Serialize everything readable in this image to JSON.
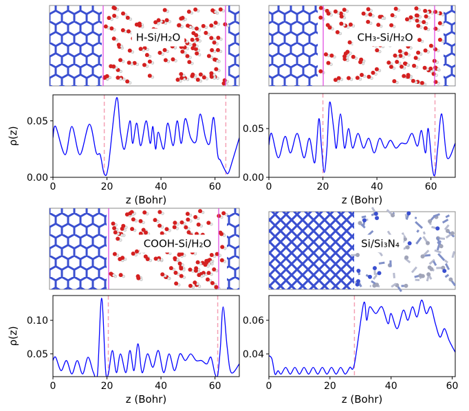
{
  "chart_data": [
    {
      "type": "line",
      "label": "H-Si/H₂O",
      "xlabel": "z (Bohr)",
      "ylabel": "ρ(z)",
      "color": "#0000ff",
      "vline_color": "#f4a0b4",
      "x": [
        0,
        1,
        4.5,
        7,
        10,
        13.5,
        16,
        17.5,
        19,
        20.5,
        23.5,
        25,
        26.5,
        28.5,
        29.5,
        31,
        32.5,
        34.5,
        36,
        37,
        38,
        39,
        41,
        42.5,
        44.5,
        46,
        47.5,
        49,
        51,
        53,
        54.5,
        56.5,
        58,
        59.5,
        61,
        62,
        64,
        65,
        66.5,
        69
      ],
      "values": [
        0.035,
        0.045,
        0.02,
        0.045,
        0.02,
        0.047,
        0.022,
        0.02,
        0.003,
        0.01,
        0.07,
        0.04,
        0.025,
        0.05,
        0.03,
        0.048,
        0.028,
        0.05,
        0.03,
        0.045,
        0.025,
        0.04,
        0.025,
        0.048,
        0.028,
        0.05,
        0.03,
        0.052,
        0.035,
        0.032,
        0.056,
        0.035,
        0.03,
        0.053,
        0.02,
        0.015,
        0.005,
        0.004,
        0.015,
        0.035
      ],
      "xlim": [
        0,
        69
      ],
      "ylim": [
        0,
        0.073
      ],
      "xticks": [
        0,
        20,
        40,
        60
      ],
      "yticks": [
        {
          "value": 0,
          "label": "0.00"
        },
        {
          "value": 0.05,
          "label": "0.05"
        }
      ],
      "vlines": [
        19,
        64
      ]
    },
    {
      "type": "line",
      "label": "CH₃-Si/H₂O",
      "xlabel": "z (Bohr)",
      "color": "#0000ff",
      "vline_color": "#f4a0b4",
      "x": [
        0,
        1,
        3.5,
        6,
        8,
        10.5,
        13,
        15,
        17,
        18.5,
        19.5,
        20.5,
        21.5,
        22.5,
        24,
        25,
        26.5,
        28,
        29.5,
        31,
        33,
        35,
        37,
        39,
        41,
        43,
        45,
        47,
        49,
        51,
        53,
        55,
        56.5,
        58,
        59,
        60.5,
        61.5,
        62.5,
        64,
        66,
        69
      ],
      "values": [
        0.033,
        0.045,
        0.02,
        0.042,
        0.025,
        0.045,
        0.02,
        0.04,
        0.015,
        0.06,
        0.03,
        0.005,
        0.03,
        0.077,
        0.05,
        0.03,
        0.065,
        0.03,
        0.05,
        0.03,
        0.045,
        0.03,
        0.04,
        0.025,
        0.04,
        0.03,
        0.038,
        0.03,
        0.035,
        0.035,
        0.045,
        0.032,
        0.048,
        0.025,
        0.05,
        0.01,
        0.003,
        0.03,
        0.065,
        0.02,
        0.035
      ],
      "xlim": [
        0,
        69
      ],
      "ylim": [
        0,
        0.086
      ],
      "xticks": [
        0,
        20,
        40,
        60
      ],
      "yticks": [
        {
          "value": 0,
          "label": "0.00"
        },
        {
          "value": 0.05,
          "label": "0.05"
        }
      ],
      "vlines": [
        20,
        61.5
      ]
    },
    {
      "type": "line",
      "label": "COOH-Si/H₂O",
      "xlabel": "z (Bohr)",
      "ylabel": "ρ(z)",
      "color": "#0000ff",
      "vline_color": "#f4a0b4",
      "x": [
        0,
        1,
        3,
        5,
        7,
        9,
        11,
        13,
        15,
        16.5,
        18,
        19.5,
        20.5,
        22,
        23.5,
        25,
        27,
        28.5,
        30,
        31.5,
        33,
        35,
        37,
        39,
        41,
        43,
        45,
        47,
        49,
        51,
        53,
        55,
        57,
        58.5,
        60,
        61,
        62,
        63,
        64.5,
        66,
        69
      ],
      "values": [
        0.04,
        0.045,
        0.025,
        0.04,
        0.02,
        0.04,
        0.02,
        0.045,
        0.022,
        0.02,
        0.133,
        0.025,
        0.02,
        0.055,
        0.022,
        0.05,
        0.022,
        0.055,
        0.025,
        0.065,
        0.022,
        0.05,
        0.03,
        0.055,
        0.022,
        0.05,
        0.025,
        0.05,
        0.04,
        0.05,
        0.04,
        0.04,
        0.035,
        0.045,
        0.02,
        0.018,
        0.06,
        0.12,
        0.06,
        0.022,
        0.035
      ],
      "xlim": [
        0,
        69
      ],
      "ylim": [
        0.016,
        0.137
      ],
      "xticks": [
        0,
        20,
        40,
        60
      ],
      "yticks": [
        {
          "value": 0.05,
          "label": "0.05"
        },
        {
          "value": 0.1,
          "label": "0.10"
        }
      ],
      "vlines": [
        20.5,
        61
      ]
    },
    {
      "type": "line",
      "label": "Si/Si₃N₄",
      "xlabel": "z (Bohr)",
      "color": "#0000ff",
      "vline_color": "#f4a0b4",
      "x": [
        0,
        1,
        2,
        3,
        4,
        5.5,
        7,
        8.5,
        10,
        11.5,
        13,
        14.5,
        16,
        17.5,
        19,
        20.5,
        22,
        23.5,
        25,
        26.5,
        28,
        31,
        32,
        33,
        35,
        37,
        39,
        40,
        42,
        44,
        45.5,
        47,
        48.5,
        50,
        51.5,
        53,
        54.5,
        56,
        57.5,
        59,
        61
      ],
      "values": [
        0.039,
        0.037,
        0.028,
        0.03,
        0.028,
        0.032,
        0.028,
        0.032,
        0.028,
        0.032,
        0.028,
        0.032,
        0.028,
        0.032,
        0.028,
        0.032,
        0.028,
        0.032,
        0.028,
        0.032,
        0.034,
        0.07,
        0.06,
        0.068,
        0.064,
        0.068,
        0.058,
        0.064,
        0.055,
        0.066,
        0.06,
        0.068,
        0.062,
        0.072,
        0.064,
        0.068,
        0.058,
        0.05,
        0.055,
        0.048,
        0.041
      ],
      "xlim": [
        0,
        61
      ],
      "ylim": [
        0.0265,
        0.0747
      ],
      "xticks": [
        0,
        20,
        40,
        60
      ],
      "yticks": [
        {
          "value": 0.04,
          "label": "0.04"
        },
        {
          "value": 0.06,
          "label": "0.06"
        }
      ],
      "vlines": [
        28
      ]
    }
  ]
}
